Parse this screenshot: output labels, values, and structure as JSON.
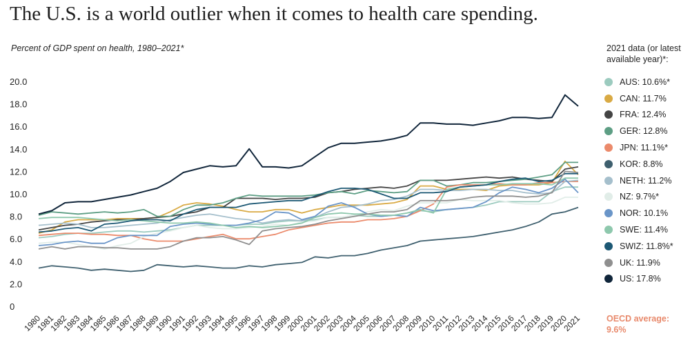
{
  "title": "The U.S. is a world outlier when it comes to health care spending.",
  "subtitle": "Percent of GDP spent on health, 1980–2021*",
  "legend_title": "2021 data (or latest available year)*:",
  "oecd_label": "OECD average:",
  "oecd_value": "9.6%",
  "chart_data": {
    "type": "line",
    "title": "The U.S. is a world outlier when it comes to health care spending.",
    "subtitle": "Percent of GDP spent on health, 1980–2021*",
    "xlabel": "",
    "ylabel": "",
    "ylim": [
      0,
      20
    ],
    "y_ticks": [
      "0",
      "2.0",
      "4.0",
      "6.0",
      "8.0",
      "10.0",
      "12.0",
      "14.0",
      "16.0",
      "18.0",
      "20.0"
    ],
    "y_tick_values": [
      0,
      2,
      4,
      6,
      8,
      10,
      12,
      14,
      16,
      18,
      20
    ],
    "x": [
      "1980",
      "1981",
      "1982",
      "1983",
      "1984",
      "1985",
      "1986",
      "1987",
      "1988",
      "1989",
      "1990",
      "1991",
      "1992",
      "1993",
      "1994",
      "1995",
      "1996",
      "1997",
      "1998",
      "1999",
      "2000",
      "2001",
      "2002",
      "2003",
      "2004",
      "2005",
      "2006",
      "2007",
      "2008",
      "2009",
      "2010",
      "2011",
      "2012",
      "2013",
      "2014",
      "2015",
      "2016",
      "2017",
      "2018",
      "2019",
      "2020",
      "2021"
    ],
    "grid": false,
    "legend_position": "right",
    "series": [
      {
        "name": "AUS: 10.6%*",
        "color": "#9ccbbf",
        "values": [
          6.1,
          6.2,
          6.4,
          6.5,
          6.5,
          6.6,
          6.7,
          6.7,
          6.6,
          6.7,
          6.8,
          7.0,
          7.2,
          7.2,
          7.2,
          7.2,
          7.3,
          7.3,
          7.5,
          7.6,
          7.6,
          7.7,
          7.9,
          7.9,
          8.1,
          8.0,
          8.0,
          8.1,
          8.3,
          8.5,
          8.4,
          8.6,
          8.7,
          8.8,
          9.0,
          9.3,
          9.3,
          9.3,
          9.3,
          10.2,
          10.6,
          10.6
        ]
      },
      {
        "name": "CAN: 11.7%",
        "color": "#d9aa44",
        "values": [
          6.5,
          6.8,
          7.5,
          7.7,
          7.7,
          7.7,
          7.8,
          7.8,
          7.8,
          7.9,
          8.4,
          9.0,
          9.2,
          9.1,
          8.9,
          8.6,
          8.4,
          8.4,
          8.6,
          8.6,
          8.3,
          8.6,
          8.8,
          9.0,
          9.0,
          9.0,
          9.1,
          9.2,
          9.5,
          10.7,
          10.7,
          10.4,
          10.4,
          10.4,
          10.3,
          10.7,
          10.8,
          10.8,
          10.8,
          11.0,
          12.9,
          11.7
        ]
      },
      {
        "name": "FRA: 12.4%",
        "color": "#444444",
        "values": [
          6.8,
          7.0,
          7.2,
          7.3,
          7.5,
          7.6,
          7.7,
          7.7,
          7.8,
          7.9,
          8.0,
          8.2,
          8.4,
          8.8,
          8.8,
          9.6,
          9.6,
          9.6,
          9.5,
          9.6,
          9.6,
          9.7,
          10.1,
          10.2,
          10.4,
          10.5,
          10.6,
          10.5,
          10.7,
          11.2,
          11.2,
          11.2,
          11.3,
          11.4,
          11.5,
          11.4,
          11.5,
          11.3,
          11.2,
          11.1,
          12.2,
          12.4
        ]
      },
      {
        "name": "GER: 12.8%",
        "color": "#5d9e84",
        "values": [
          8.1,
          8.4,
          8.3,
          8.2,
          8.3,
          8.4,
          8.3,
          8.4,
          8.6,
          8.0,
          8.0,
          8.6,
          9.0,
          9.0,
          9.2,
          9.6,
          9.9,
          9.8,
          9.8,
          9.8,
          9.8,
          9.9,
          10.1,
          10.2,
          10.0,
          10.3,
          10.2,
          10.1,
          10.2,
          11.2,
          11.2,
          10.7,
          10.8,
          11.0,
          11.0,
          11.1,
          11.2,
          11.3,
          11.5,
          11.7,
          12.8,
          12.8
        ]
      },
      {
        "name": "JPN: 11.1%*",
        "color": "#eb8a6b",
        "values": [
          6.3,
          6.4,
          6.5,
          6.5,
          6.4,
          6.4,
          6.3,
          6.3,
          6.0,
          5.8,
          5.8,
          5.8,
          6.0,
          6.2,
          6.4,
          6.0,
          6.0,
          6.2,
          6.4,
          6.8,
          7.0,
          7.2,
          7.4,
          7.5,
          7.5,
          7.7,
          7.7,
          7.8,
          8.0,
          8.5,
          9.1,
          10.6,
          10.8,
          10.8,
          10.8,
          10.9,
          10.8,
          10.8,
          11.0,
          11.0,
          11.1,
          11.1
        ]
      },
      {
        "name": "KOR: 8.8%",
        "color": "#3e5f6e",
        "values": [
          3.4,
          3.6,
          3.5,
          3.4,
          3.2,
          3.3,
          3.2,
          3.1,
          3.2,
          3.7,
          3.6,
          3.5,
          3.6,
          3.5,
          3.4,
          3.4,
          3.6,
          3.5,
          3.7,
          3.8,
          3.9,
          4.4,
          4.3,
          4.5,
          4.5,
          4.7,
          5.0,
          5.2,
          5.4,
          5.8,
          5.9,
          6.0,
          6.1,
          6.2,
          6.4,
          6.6,
          6.8,
          7.1,
          7.5,
          8.2,
          8.4,
          8.8
        ]
      },
      {
        "name": "NETH: 11.2%",
        "color": "#a5bfcc",
        "values": [
          7.2,
          7.3,
          7.4,
          7.3,
          7.0,
          7.0,
          7.1,
          7.2,
          7.3,
          7.4,
          7.7,
          7.9,
          8.1,
          8.2,
          8.0,
          7.8,
          7.7,
          7.4,
          7.6,
          7.7,
          7.6,
          7.9,
          8.4,
          8.8,
          8.9,
          9.1,
          9.4,
          9.5,
          9.8,
          10.4,
          10.4,
          10.3,
          10.3,
          10.4,
          10.4,
          10.3,
          10.3,
          10.1,
          10.0,
          10.1,
          11.1,
          11.2
        ]
      },
      {
        "name": "NZ: 9.7%*",
        "color": "#e1ede8",
        "values": [
          5.6,
          5.7,
          5.7,
          5.5,
          5.3,
          5.1,
          5.4,
          5.6,
          6.2,
          6.5,
          6.7,
          7.0,
          7.2,
          7.0,
          6.9,
          6.9,
          7.0,
          7.1,
          7.3,
          7.2,
          7.5,
          7.6,
          7.9,
          7.9,
          8.1,
          8.4,
          8.6,
          8.5,
          8.9,
          9.2,
          9.2,
          9.2,
          9.5,
          9.4,
          9.4,
          9.4,
          9.2,
          9.1,
          9.1,
          9.2,
          9.7,
          9.7
        ]
      },
      {
        "name": "NOR: 10.1%",
        "color": "#6a95c8",
        "values": [
          5.4,
          5.5,
          5.7,
          5.8,
          5.6,
          5.6,
          6.1,
          6.3,
          6.3,
          6.3,
          7.1,
          7.3,
          7.4,
          7.3,
          7.2,
          7.2,
          7.4,
          7.7,
          8.4,
          8.3,
          7.7,
          8.0,
          8.9,
          9.2,
          8.8,
          8.2,
          8.0,
          8.1,
          8.0,
          8.8,
          8.5,
          8.6,
          8.7,
          8.8,
          9.3,
          10.1,
          10.6,
          10.4,
          10.1,
          10.5,
          11.3,
          10.1
        ]
      },
      {
        "name": "SWE: 11.4%",
        "color": "#8ec8ad",
        "values": [
          7.8,
          7.9,
          7.9,
          7.9,
          7.8,
          7.7,
          7.6,
          7.7,
          7.6,
          7.5,
          7.4,
          7.4,
          7.5,
          7.4,
          7.2,
          7.0,
          7.1,
          7.0,
          7.1,
          7.2,
          7.4,
          7.9,
          8.2,
          8.3,
          8.2,
          8.2,
          8.1,
          8.1,
          8.3,
          8.6,
          8.3,
          10.4,
          10.6,
          10.7,
          10.8,
          10.8,
          10.9,
          10.9,
          10.9,
          10.8,
          11.4,
          11.4
        ]
      },
      {
        "name": "SWIZ: 11.8%*",
        "color": "#1c5874",
        "values": [
          6.6,
          6.7,
          6.9,
          7.0,
          6.7,
          7.3,
          7.4,
          7.6,
          7.7,
          7.7,
          7.6,
          8.2,
          8.6,
          8.8,
          8.8,
          8.8,
          9.1,
          9.2,
          9.3,
          9.4,
          9.4,
          9.8,
          10.2,
          10.5,
          10.5,
          10.4,
          10.0,
          9.6,
          9.6,
          10.1,
          10.1,
          10.2,
          10.6,
          10.7,
          10.8,
          11.1,
          11.3,
          11.4,
          11.1,
          11.2,
          11.8,
          11.8
        ]
      },
      {
        "name": "UK: 11.9%",
        "color": "#8f8f8f",
        "values": [
          5.1,
          5.3,
          5.1,
          5.3,
          5.3,
          5.2,
          5.2,
          5.1,
          5.1,
          5.1,
          5.3,
          5.8,
          6.1,
          6.1,
          6.2,
          5.9,
          5.5,
          6.7,
          6.9,
          7.0,
          7.1,
          7.3,
          7.6,
          7.8,
          8.0,
          8.2,
          8.4,
          8.4,
          8.6,
          9.4,
          9.4,
          9.4,
          9.5,
          9.7,
          9.8,
          9.8,
          9.8,
          9.7,
          9.8,
          10.1,
          12.0,
          11.9
        ]
      },
      {
        "name": "US: 17.8%",
        "color": "#10253a",
        "values": [
          8.2,
          8.5,
          9.2,
          9.3,
          9.3,
          9.5,
          9.7,
          9.9,
          10.2,
          10.5,
          11.1,
          11.9,
          12.2,
          12.5,
          12.4,
          12.5,
          14.0,
          12.4,
          12.4,
          12.3,
          12.5,
          13.3,
          14.1,
          14.5,
          14.5,
          14.6,
          14.7,
          14.9,
          15.2,
          16.3,
          16.3,
          16.2,
          16.2,
          16.1,
          16.3,
          16.5,
          16.8,
          16.8,
          16.7,
          16.8,
          18.8,
          17.8
        ]
      }
    ]
  }
}
